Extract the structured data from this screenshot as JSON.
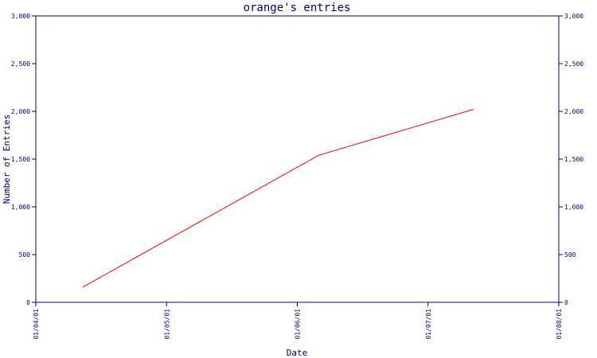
{
  "chart_data": {
    "type": "line",
    "title": "orange's entries",
    "xlabel": "Date",
    "ylabel": "Number of Entries",
    "x_ticks": [
      "01/04/01",
      "01/05/01",
      "01/06/01",
      "01/07/01",
      "01/08/01"
    ],
    "y_ticks": [
      "0",
      "500",
      "1,000",
      "1,500",
      "2,000",
      "2,500",
      "3,000"
    ],
    "ylim": [
      0,
      3000
    ],
    "xlim": [
      "2001-04-01",
      "2001-08-01"
    ],
    "grid": false,
    "series": [
      {
        "color": "#ff0000",
        "points": [
          {
            "x": "2001-04-12",
            "y": 160
          },
          {
            "x": "2001-06-06",
            "y": 1540
          },
          {
            "x": "2001-07-12",
            "y": 2020
          }
        ]
      }
    ],
    "axis_color": "#000080"
  }
}
